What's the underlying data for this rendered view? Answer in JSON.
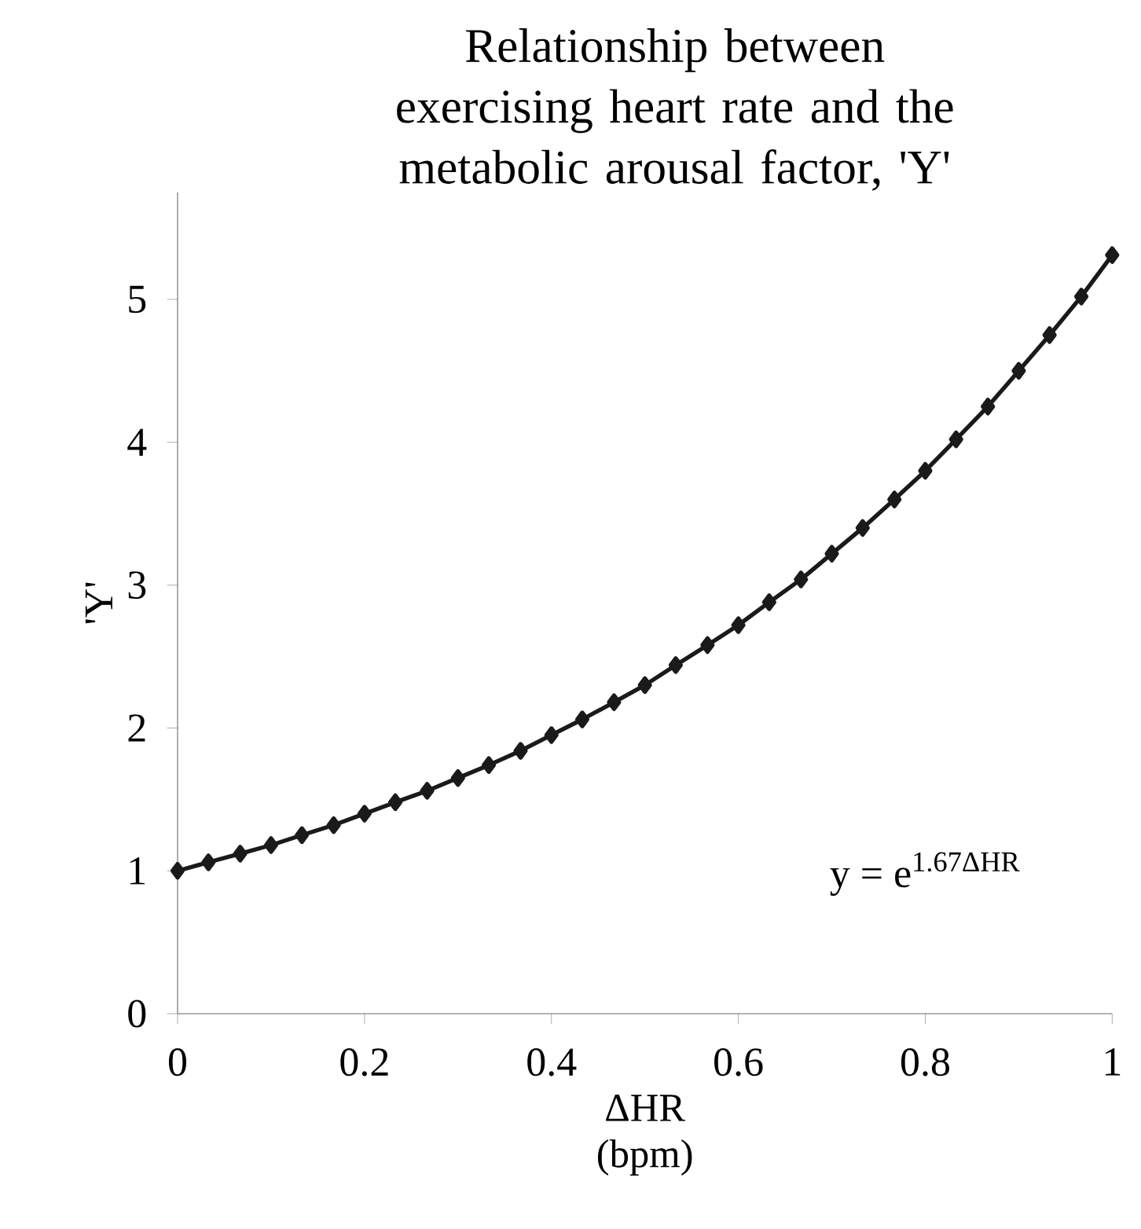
{
  "chart_data": {
    "type": "line",
    "title": "Relationship between exercising heart rate and the metabolic arousal factor, 'Y'",
    "xlabel": "ΔHR (bpm)",
    "ylabel": "'Y'",
    "annotations": [
      "y = e$^{1.67ΔHR}$"
    ],
    "x": [
      0,
      0.033,
      0.067,
      0.1,
      0.133,
      0.167,
      0.2,
      0.233,
      0.267,
      0.3,
      0.333,
      0.367,
      0.4,
      0.433,
      0.467,
      0.5,
      0.533,
      0.567,
      0.6,
      0.633,
      0.667,
      0.7,
      0.733,
      0.767,
      0.8,
      0.833,
      0.867,
      0.9,
      0.933,
      0.967,
      1
    ],
    "values": [
      1.0,
      1.06,
      1.12,
      1.18,
      1.25,
      1.32,
      1.4,
      1.48,
      1.56,
      1.65,
      1.74,
      1.84,
      1.95,
      2.06,
      2.18,
      2.3,
      2.44,
      2.58,
      2.72,
      2.88,
      3.04,
      3.22,
      3.4,
      3.6,
      3.8,
      4.02,
      4.25,
      4.5,
      4.75,
      5.02,
      5.31
    ],
    "color": "#1a1a1a",
    "xlim": [
      0,
      1
    ],
    "ylim": [
      0,
      5.75
    ],
    "xticks": [
      0,
      0.2,
      0.4,
      0.6,
      0.8,
      1
    ],
    "yticks": [
      0,
      1,
      2,
      3,
      4,
      5
    ],
    "marker": "diamond",
    "line_style": "solid"
  }
}
